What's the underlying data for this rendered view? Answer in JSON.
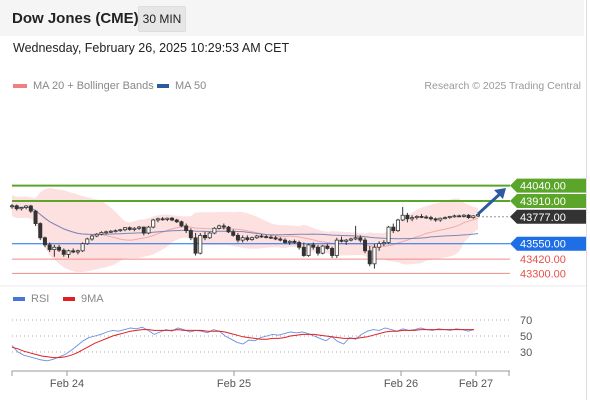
{
  "header": {
    "title": "Dow Jones (CME)",
    "timeframe": "30 MIN"
  },
  "timestamp": "Wednesday, February 26, 2025 10:29:53 AM CET",
  "legend": {
    "main": [
      {
        "label": "MA 20 + Bollinger Bands",
        "color": "#f08080"
      },
      {
        "label": "MA 50",
        "color": "#2c5aa0"
      }
    ],
    "sub": [
      {
        "label": "RSI",
        "color": "#4a74d8"
      },
      {
        "label": "9MA",
        "color": "#e02020"
      }
    ]
  },
  "credit": "Research © 2025 Trading Central",
  "chart_data": [
    {
      "type": "candlestick",
      "x_labels": [
        "Feb 24",
        "Feb 25",
        "Feb 26",
        "Feb 27"
      ],
      "levels": [
        {
          "value": 44040,
          "label": "44040.00",
          "style": "resistance",
          "color": "#5aa52a"
        },
        {
          "value": 43910,
          "label": "43910.00",
          "style": "resistance",
          "color": "#5aa52a"
        },
        {
          "value": 43777,
          "label": "43777.00",
          "style": "last-price",
          "color": "#333333"
        },
        {
          "value": 43550,
          "label": "43550.00",
          "style": "pivot",
          "color": "#1e6ee6"
        },
        {
          "value": 43420,
          "label": "43420.00",
          "style": "support",
          "color": "#e8504a"
        },
        {
          "value": 43300,
          "label": "43300.00",
          "style": "support",
          "color": "#e8504a"
        }
      ],
      "target_arrow": {
        "from": 43800,
        "to": 44020
      },
      "ylim": [
        43250,
        44150
      ],
      "candles": [
        [
          43865,
          43885,
          43845,
          43870
        ],
        [
          43870,
          43880,
          43830,
          43845
        ],
        [
          43845,
          43860,
          43830,
          43855
        ],
        [
          43855,
          43875,
          43840,
          43868
        ],
        [
          43868,
          43878,
          43810,
          43825
        ],
        [
          43825,
          43835,
          43700,
          43720
        ],
        [
          43720,
          43730,
          43580,
          43600
        ],
        [
          43600,
          43610,
          43520,
          43540
        ],
        [
          43540,
          43560,
          43480,
          43500
        ],
        [
          43500,
          43540,
          43440,
          43520
        ],
        [
          43520,
          43540,
          43480,
          43495
        ],
        [
          43495,
          43510,
          43440,
          43460
        ],
        [
          43460,
          43500,
          43430,
          43490
        ],
        [
          43490,
          43510,
          43470,
          43480
        ],
        [
          43480,
          43500,
          43460,
          43490
        ],
        [
          43490,
          43560,
          43480,
          43550
        ],
        [
          43550,
          43600,
          43540,
          43590
        ],
        [
          43590,
          43625,
          43575,
          43615
        ],
        [
          43615,
          43640,
          43605,
          43630
        ],
        [
          43630,
          43655,
          43620,
          43645
        ],
        [
          43645,
          43660,
          43630,
          43650
        ],
        [
          43650,
          43665,
          43640,
          43655
        ],
        [
          43655,
          43670,
          43645,
          43660
        ],
        [
          43660,
          43675,
          43650,
          43668
        ],
        [
          43668,
          43690,
          43655,
          43685
        ],
        [
          43685,
          43695,
          43660,
          43670
        ],
        [
          43670,
          43690,
          43655,
          43680
        ],
        [
          43680,
          43700,
          43665,
          43690
        ],
        [
          43690,
          43695,
          43620,
          43640
        ],
        [
          43640,
          43700,
          43630,
          43690
        ],
        [
          43690,
          43760,
          43680,
          43750
        ],
        [
          43750,
          43770,
          43730,
          43760
        ],
        [
          43760,
          43775,
          43745,
          43755
        ],
        [
          43755,
          43770,
          43740,
          43765
        ],
        [
          43765,
          43775,
          43740,
          43750
        ],
        [
          43750,
          43760,
          43725,
          43735
        ],
        [
          43735,
          43745,
          43690,
          43700
        ],
        [
          43700,
          43720,
          43640,
          43660
        ],
        [
          43660,
          43680,
          43580,
          43600
        ],
        [
          43600,
          43640,
          43450,
          43470
        ],
        [
          43470,
          43640,
          43460,
          43620
        ],
        [
          43620,
          43650,
          43580,
          43600
        ],
        [
          43600,
          43650,
          43590,
          43640
        ],
        [
          43640,
          43690,
          43630,
          43680
        ],
        [
          43680,
          43710,
          43670,
          43700
        ],
        [
          43700,
          43720,
          43670,
          43690
        ],
        [
          43690,
          43700,
          43640,
          43650
        ],
        [
          43650,
          43670,
          43610,
          43620
        ],
        [
          43620,
          43640,
          43560,
          43580
        ],
        [
          43580,
          43620,
          43560,
          43600
        ],
        [
          43600,
          43620,
          43570,
          43585
        ],
        [
          43585,
          43610,
          43575,
          43600
        ],
        [
          43600,
          43625,
          43590,
          43615
        ],
        [
          43615,
          43630,
          43600,
          43610
        ],
        [
          43610,
          43625,
          43595,
          43605
        ],
        [
          43605,
          43620,
          43590,
          43600
        ],
        [
          43600,
          43615,
          43580,
          43590
        ],
        [
          43590,
          43605,
          43570,
          43580
        ],
        [
          43580,
          43595,
          43550,
          43560
        ],
        [
          43560,
          43580,
          43540,
          43570
        ],
        [
          43570,
          43585,
          43550,
          43560
        ],
        [
          43560,
          43575,
          43500,
          43520
        ],
        [
          43520,
          43560,
          43440,
          43450
        ],
        [
          43450,
          43550,
          43440,
          43540
        ],
        [
          43540,
          43560,
          43500,
          43520
        ],
        [
          43520,
          43540,
          43450,
          43470
        ],
        [
          43470,
          43540,
          43460,
          43530
        ],
        [
          43530,
          43550,
          43500,
          43510
        ],
        [
          43510,
          43525,
          43430,
          43450
        ],
        [
          43450,
          43600,
          43430,
          43580
        ],
        [
          43580,
          43610,
          43560,
          43570
        ],
        [
          43570,
          43590,
          43540,
          43580
        ],
        [
          43580,
          43600,
          43570,
          43590
        ],
        [
          43590,
          43700,
          43580,
          43600
        ],
        [
          43600,
          43620,
          43560,
          43580
        ],
        [
          43580,
          43600,
          43470,
          43490
        ],
        [
          43490,
          43530,
          43360,
          43380
        ],
        [
          43380,
          43550,
          43340,
          43520
        ],
        [
          43520,
          43570,
          43490,
          43550
        ],
        [
          43550,
          43580,
          43530,
          43560
        ],
        [
          43560,
          43700,
          43550,
          43690
        ],
        [
          43690,
          43720,
          43640,
          43660
        ],
        [
          43660,
          43760,
          43650,
          43750
        ],
        [
          43750,
          43860,
          43740,
          43790
        ],
        [
          43790,
          43810,
          43730,
          43760
        ],
        [
          43760,
          43790,
          43740,
          43770
        ],
        [
          43770,
          43790,
          43755,
          43780
        ],
        [
          43780,
          43800,
          43765,
          43775
        ],
        [
          43775,
          43790,
          43760,
          43770
        ],
        [
          43770,
          43785,
          43745,
          43760
        ],
        [
          43760,
          43770,
          43735,
          43750
        ],
        [
          43750,
          43770,
          43735,
          43765
        ],
        [
          43765,
          43780,
          43755,
          43770
        ],
        [
          43770,
          43785,
          43760,
          43780
        ],
        [
          43780,
          43795,
          43770,
          43785
        ],
        [
          43785,
          43795,
          43775,
          43780
        ],
        [
          43780,
          43800,
          43770,
          43790
        ],
        [
          43790,
          43800,
          43760,
          43770
        ],
        [
          43770,
          43790,
          43760,
          43785
        ],
        [
          43785,
          43800,
          43775,
          43795
        ]
      ]
    },
    {
      "type": "line",
      "title": "RSI",
      "ylim": [
        10,
        90
      ],
      "ticks": [
        70,
        50,
        30
      ],
      "x_labels": [
        "Feb 24",
        "Feb 25",
        "Feb 26",
        "Feb 27"
      ],
      "series": [
        {
          "name": "RSI",
          "values": [
            38,
            30,
            26,
            24,
            22,
            20,
            19,
            21,
            24,
            27,
            32,
            38,
            44,
            48,
            50,
            52,
            55,
            57,
            56,
            58,
            60,
            59,
            61,
            57,
            52,
            55,
            58,
            56,
            60,
            58,
            55,
            57,
            56,
            54,
            58,
            56,
            50,
            46,
            42,
            40,
            45,
            44,
            48,
            50,
            52,
            51,
            53,
            55,
            54,
            55,
            53,
            50,
            47,
            44,
            49,
            43,
            40,
            48,
            46,
            52,
            56,
            58,
            57,
            60,
            58,
            56,
            59,
            57,
            58,
            60,
            58,
            57,
            59,
            58,
            57,
            59,
            58,
            56,
            58
          ]
        },
        {
          "name": "9MA",
          "values": [
            36,
            34,
            31,
            29,
            27,
            25,
            24,
            23,
            23,
            24,
            26,
            29,
            33,
            37,
            41,
            44,
            47,
            50,
            52,
            54,
            56,
            57,
            58,
            58,
            57,
            57,
            57,
            57,
            58,
            57,
            57,
            57,
            57,
            56,
            56,
            56,
            55,
            53,
            51,
            49,
            48,
            47,
            46,
            46,
            47,
            47,
            48,
            50,
            51,
            52,
            52,
            52,
            51,
            50,
            49,
            48,
            47,
            47,
            47,
            48,
            49,
            51,
            53,
            55,
            56,
            56,
            57,
            57,
            57,
            58,
            58,
            58,
            58,
            58,
            58,
            58,
            58,
            58,
            58
          ]
        }
      ]
    }
  ]
}
